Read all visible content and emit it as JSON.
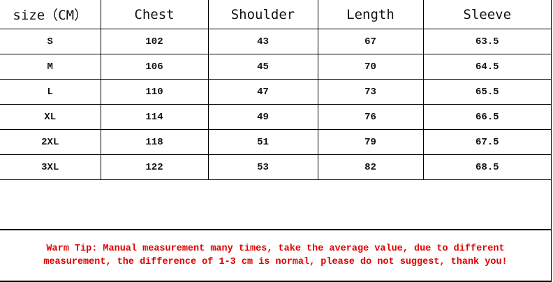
{
  "table": {
    "headers": [
      "size（CM）",
      "Chest",
      "Shoulder",
      "Length",
      "Sleeve"
    ],
    "rows": [
      [
        "S",
        "102",
        "43",
        "67",
        "63.5"
      ],
      [
        "M",
        "106",
        "45",
        "70",
        "64.5"
      ],
      [
        "L",
        "110",
        "47",
        "73",
        "65.5"
      ],
      [
        "XL",
        "114",
        "49",
        "76",
        "66.5"
      ],
      [
        "2XL",
        "118",
        "51",
        "79",
        "67.5"
      ],
      [
        "3XL",
        "122",
        "53",
        "82",
        "68.5"
      ]
    ]
  },
  "tip": {
    "text": "Warm Tip: Manual measurement many times, take the average value, due to different measurement, the difference of 1-3 cm is normal, please do not suggest, thank you!",
    "color": "#e00000"
  }
}
